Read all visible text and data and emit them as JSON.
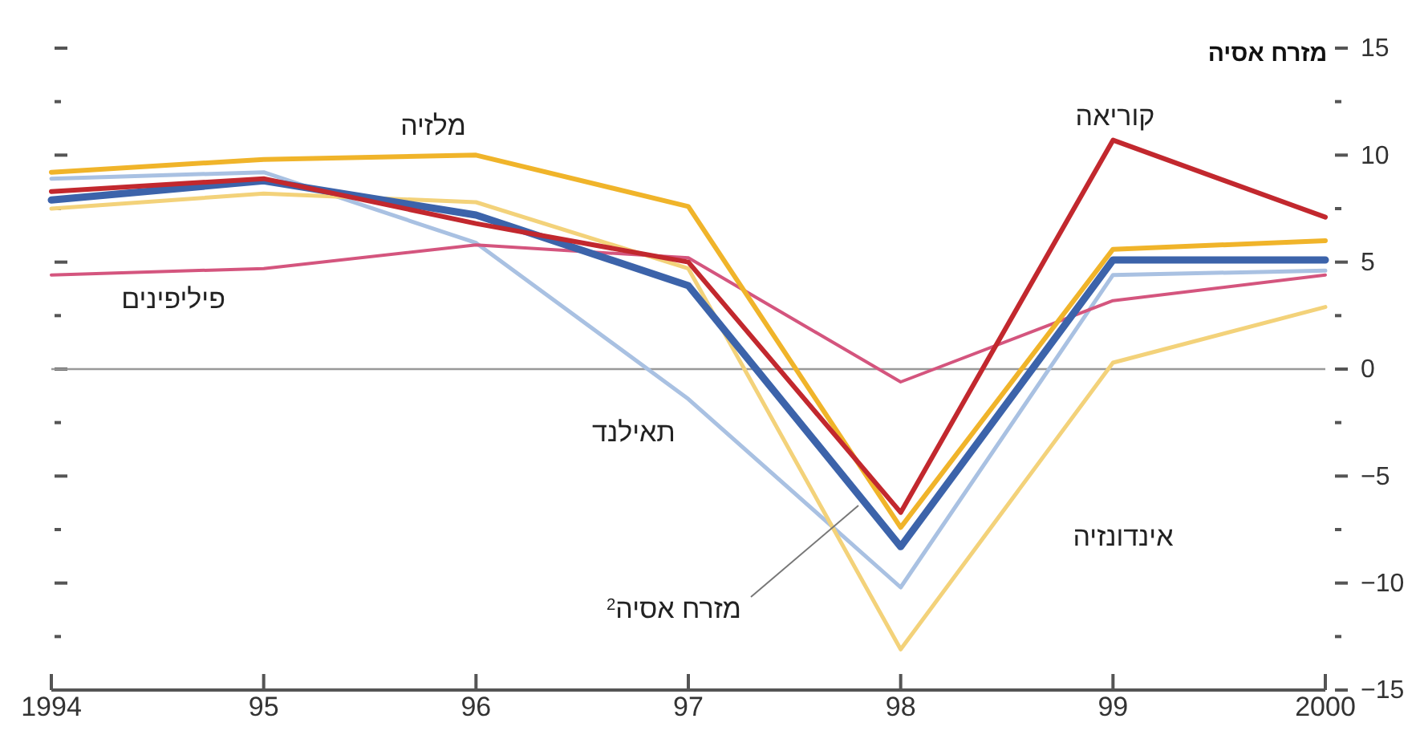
{
  "chart_data": {
    "type": "line",
    "title": "מזרח אסיה",
    "x": [
      1994,
      1995,
      1996,
      1997,
      1998,
      1999,
      2000
    ],
    "xlim": [
      1994,
      2000
    ],
    "xticks": [
      {
        "value": 1994,
        "label": "1994"
      },
      {
        "value": 1995,
        "label": "95"
      },
      {
        "value": 1996,
        "label": "96"
      },
      {
        "value": 1997,
        "label": "97"
      },
      {
        "value": 1998,
        "label": "98"
      },
      {
        "value": 1999,
        "label": "99"
      },
      {
        "value": 2000,
        "label": "2000"
      }
    ],
    "ylim": [
      -15,
      15
    ],
    "yticks": [
      -15,
      {
        "value": -12.5,
        "label": null
      },
      -10,
      {
        "value": -7.5,
        "label": null
      },
      -5,
      {
        "value": -2.5,
        "label": null
      },
      0,
      {
        "value": 2.5,
        "label": null
      },
      5,
      {
        "value": 7.5,
        "label": null
      },
      10,
      {
        "value": 12.5,
        "label": null
      },
      15
    ],
    "grid": false,
    "ref_lines": [
      {
        "axis": "y",
        "value": 0,
        "color": "#999999"
      }
    ],
    "series": [
      {
        "name": "תאילנד",
        "color": "#a9c1e2",
        "values": [
          8.9,
          9.2,
          5.9,
          -1.4,
          -10.2,
          4.4,
          4.6
        ]
      },
      {
        "name": "אינדונזיה",
        "color": "#f3d27a",
        "values": [
          7.5,
          8.2,
          7.8,
          4.7,
          -13.1,
          0.3,
          2.9
        ]
      },
      {
        "name": "פיליפינים",
        "color": "#d4557e",
        "values": [
          4.4,
          4.7,
          5.8,
          5.2,
          -0.6,
          3.2,
          4.4
        ]
      },
      {
        "name": "מלזיה",
        "color": "#f0b42a",
        "values": [
          9.2,
          9.8,
          10.0,
          7.6,
          -7.4,
          5.6,
          6.0
        ]
      },
      {
        "name": "מזרח אסיה$^{2}$",
        "color": "#3c63aa",
        "values": [
          7.9,
          8.8,
          7.2,
          3.9,
          -8.3,
          5.1,
          5.1
        ]
      },
      {
        "name": "קוריאה",
        "color": "#c2282e",
        "values": [
          8.3,
          8.9,
          6.8,
          5.0,
          -6.7,
          10.7,
          7.1
        ]
      }
    ]
  }
}
